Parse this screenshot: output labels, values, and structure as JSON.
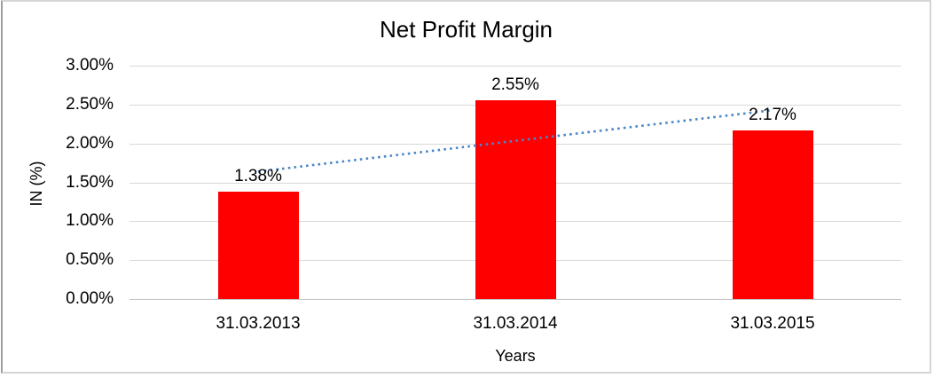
{
  "chart_data": {
    "type": "bar",
    "title": "Net Profit Margin",
    "xlabel": "Years",
    "ylabel": "IN (%)",
    "categories": [
      "31.03.2013",
      "31.03.2014",
      "31.03.2015"
    ],
    "series": [
      {
        "name": "Net Profit Margin",
        "values": [
          1.38,
          2.55,
          2.17
        ]
      }
    ],
    "value_labels": [
      "1.38%",
      "2.55%",
      "2.17%"
    ],
    "yticks": [
      "0.00%",
      "0.50%",
      "1.00%",
      "1.50%",
      "2.00%",
      "2.50%",
      "3.00%"
    ],
    "ytick_values": [
      0.0,
      0.5,
      1.0,
      1.5,
      2.0,
      2.5,
      3.0
    ],
    "ylim": [
      0,
      3
    ],
    "grid": true,
    "legend": "none",
    "colors": {
      "bar": "#ff0000",
      "trendline": "#4a86c8",
      "gridline": "#d9d9d9",
      "text": "#000000"
    },
    "trendline": {
      "type": "linear",
      "style": "dotted",
      "endpoints_value": [
        1.638,
        2.428
      ]
    }
  }
}
